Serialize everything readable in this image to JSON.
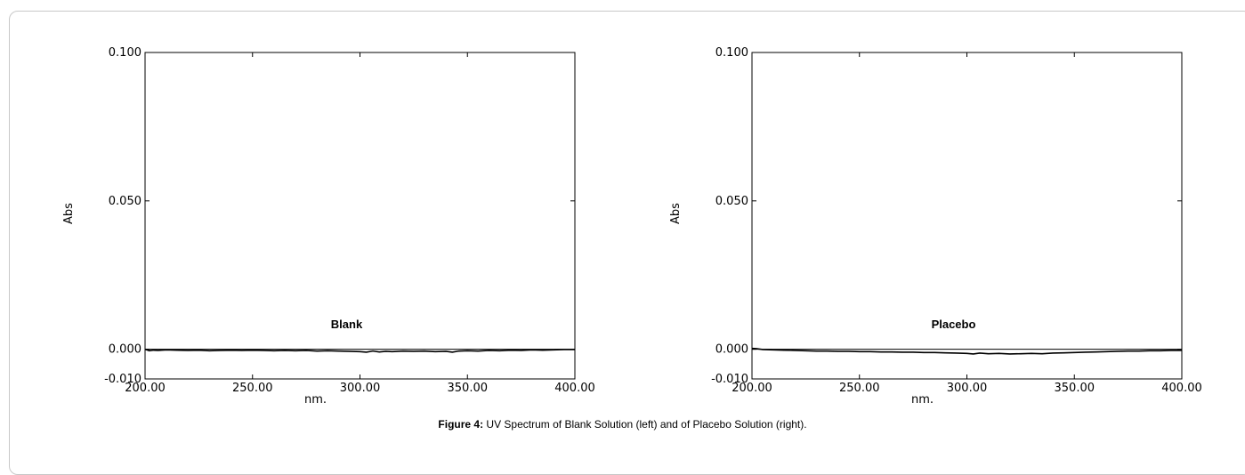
{
  "caption": {
    "label": "Figure 4:",
    "text": " UV Spectrum of Blank Solution (left) and of Placebo Solution (right)."
  },
  "chart_data": [
    {
      "type": "line",
      "annotation": "Blank",
      "xlabel": "nm.",
      "ylabel": "Abs",
      "xlim": [
        200,
        400
      ],
      "ylim": [
        -0.01,
        0.1
      ],
      "x_ticks": [
        "200.00",
        "250.00",
        "300.00",
        "350.00",
        "400.00"
      ],
      "y_ticks": [
        "0.100",
        "0.050",
        "0.000",
        "-0.010"
      ],
      "grid": false,
      "series": [
        {
          "x": [
            200,
            202,
            204,
            206,
            210,
            215,
            220,
            225,
            230,
            235,
            240,
            245,
            250,
            255,
            260,
            265,
            270,
            275,
            280,
            285,
            290,
            295,
            300,
            303,
            306,
            309,
            312,
            315,
            320,
            325,
            330,
            335,
            340,
            343,
            346,
            350,
            355,
            360,
            365,
            370,
            375,
            380,
            385,
            390,
            395,
            400
          ],
          "y": [
            0.0,
            -0.0005,
            -0.0003,
            -0.0004,
            -0.0002,
            -0.0003,
            -0.0004,
            -0.0003,
            -0.0005,
            -0.0004,
            -0.0003,
            -0.0004,
            -0.0003,
            -0.0004,
            -0.0005,
            -0.0004,
            -0.0005,
            -0.0004,
            -0.0006,
            -0.0005,
            -0.0006,
            -0.0007,
            -0.0008,
            -0.001,
            -0.0006,
            -0.0009,
            -0.0007,
            -0.0008,
            -0.0006,
            -0.0007,
            -0.0006,
            -0.0008,
            -0.0007,
            -0.001,
            -0.0006,
            -0.0005,
            -0.0006,
            -0.0004,
            -0.0005,
            -0.0003,
            -0.0004,
            -0.0002,
            -0.0003,
            -0.0002,
            -0.0001,
            -0.0001
          ]
        }
      ]
    },
    {
      "type": "line",
      "annotation": "Placebo",
      "xlabel": "nm.",
      "ylabel": "Abs",
      "xlim": [
        200,
        400
      ],
      "ylim": [
        -0.01,
        0.1
      ],
      "x_ticks": [
        "200.00",
        "250.00",
        "300.00",
        "350.00",
        "400.00"
      ],
      "y_ticks": [
        "0.100",
        "0.050",
        "0.000",
        "-0.010"
      ],
      "grid": false,
      "series": [
        {
          "x": [
            200,
            202,
            205,
            210,
            215,
            220,
            225,
            230,
            235,
            240,
            245,
            250,
            255,
            260,
            265,
            270,
            275,
            280,
            285,
            290,
            295,
            300,
            303,
            306,
            310,
            315,
            320,
            325,
            330,
            335,
            340,
            345,
            350,
            355,
            360,
            365,
            370,
            375,
            380,
            385,
            390,
            395,
            400
          ],
          "y": [
            0.0003,
            0.0002,
            -0.0001,
            -0.0002,
            -0.0003,
            -0.0004,
            -0.0005,
            -0.0006,
            -0.0006,
            -0.0007,
            -0.0007,
            -0.0008,
            -0.0008,
            -0.0009,
            -0.0009,
            -0.001,
            -0.001,
            -0.0011,
            -0.0011,
            -0.0012,
            -0.0013,
            -0.0014,
            -0.0016,
            -0.0013,
            -0.0015,
            -0.0014,
            -0.0016,
            -0.0015,
            -0.0014,
            -0.0015,
            -0.0013,
            -0.0012,
            -0.0011,
            -0.001,
            -0.0009,
            -0.0008,
            -0.0007,
            -0.0006,
            -0.0006,
            -0.0005,
            -0.0005,
            -0.0004,
            -0.0004
          ]
        }
      ]
    }
  ]
}
